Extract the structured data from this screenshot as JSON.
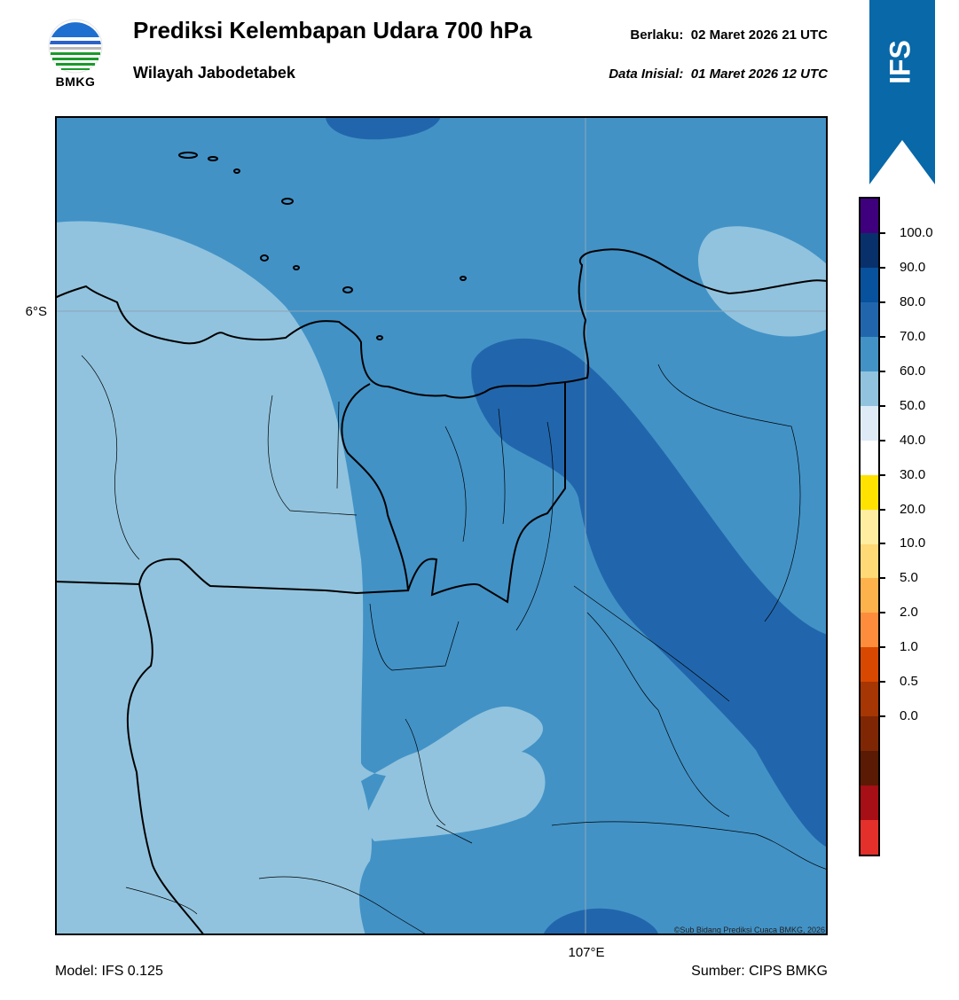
{
  "header": {
    "title": "Prediksi Kelembapan Udara 700 hPa",
    "region": "Wilayah Jabodetabek",
    "valid_label": "Berlaku:",
    "valid_time": "02 Maret 2026 21 UTC",
    "init_label": "Data Inisial:",
    "init_time": "01 Maret 2026 12 UTC"
  },
  "logo": {
    "text": "BMKG",
    "icon": "bmkg-logo"
  },
  "ribbon": {
    "text": "IFS",
    "color": "#0868a8"
  },
  "map": {
    "lat_label": "6°S",
    "lon_label": "107°E",
    "copyright": "©Sub Bidang Prediksi Cuaca BMKG, 2026",
    "fill_colors": {
      "light": "#91c3de",
      "mid": "#4292c6",
      "dark": "#2166ac"
    }
  },
  "footer": {
    "model": "Model: IFS 0.125",
    "source": "Sumber: CIPS BMKG"
  },
  "colorbar": {
    "labels": [
      "100.0",
      "90.0",
      "80.0",
      "70.0",
      "60.0",
      "50.0",
      "40.0",
      "30.0",
      "20.0",
      "10.0",
      "5.0",
      "2.0",
      "1.0",
      "0.5",
      "0.0"
    ],
    "colors": [
      "#3f007d",
      "#08306b",
      "#08519c",
      "#2166ac",
      "#4292c6",
      "#91c3de",
      "#deebf7",
      "#ffffff",
      "#ffe200",
      "#ffeda0",
      "#fed976",
      "#feb24c",
      "#fd8d3c",
      "#d94801",
      "#a63603",
      "#7f2704",
      "#5a1a04",
      "#a50f15",
      "#e4302a"
    ]
  }
}
